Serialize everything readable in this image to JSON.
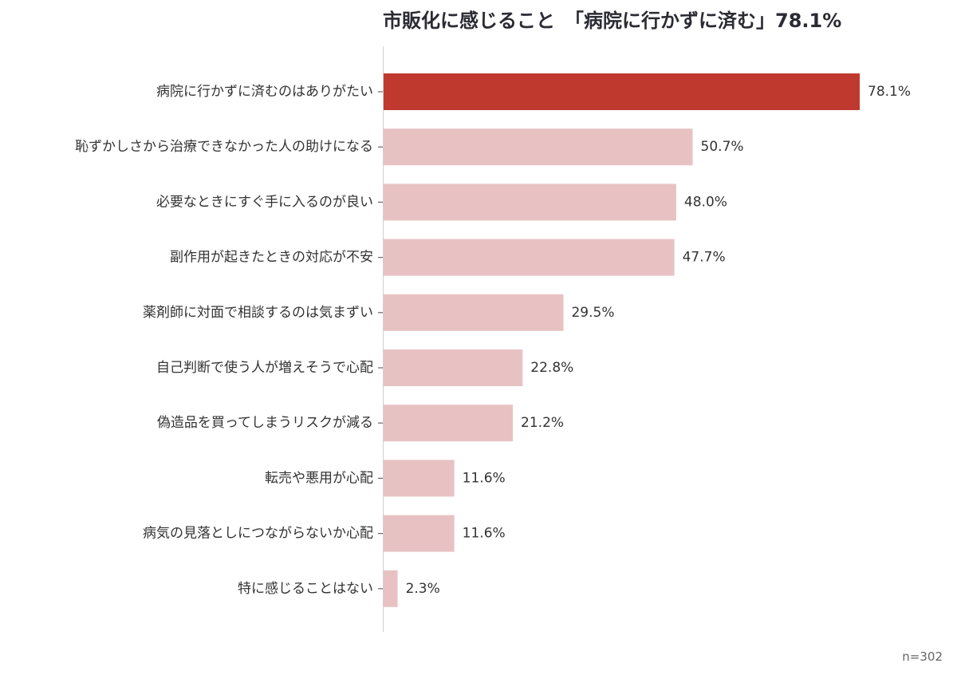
{
  "chart_data": {
    "type": "bar",
    "orientation": "horizontal",
    "title": "市販化に感じること　「病院に行かずに済む」78.1%",
    "categories": [
      "病院に行かずに済むのはありがたい",
      "恥ずかしさから治療できなかった人の助けになる",
      "必要なときにすぐ手に入るのが良い",
      "副作用が起きたときの対応が不安",
      "薬剤師に対面で相談するのは気まずい",
      "自己判断で使う人が増えそうで心配",
      "偽造品を買ってしまうリスクが減る",
      "転売や悪用が心配",
      "病気の見落としにつながらないか心配",
      "特に感じることはない"
    ],
    "values": [
      78.1,
      50.7,
      48.0,
      47.7,
      29.5,
      22.8,
      21.2,
      11.6,
      11.6,
      2.3
    ],
    "value_labels": [
      "78.1%",
      "50.7%",
      "48.0%",
      "47.7%",
      "29.5%",
      "22.8%",
      "21.2%",
      "11.6%",
      "11.6%",
      "2.3%"
    ],
    "xlim": [
      0,
      80
    ],
    "highlight_index": 0,
    "colors": {
      "highlight": "#c0392f",
      "default": "#e8c2c3"
    },
    "note": "n=302"
  }
}
